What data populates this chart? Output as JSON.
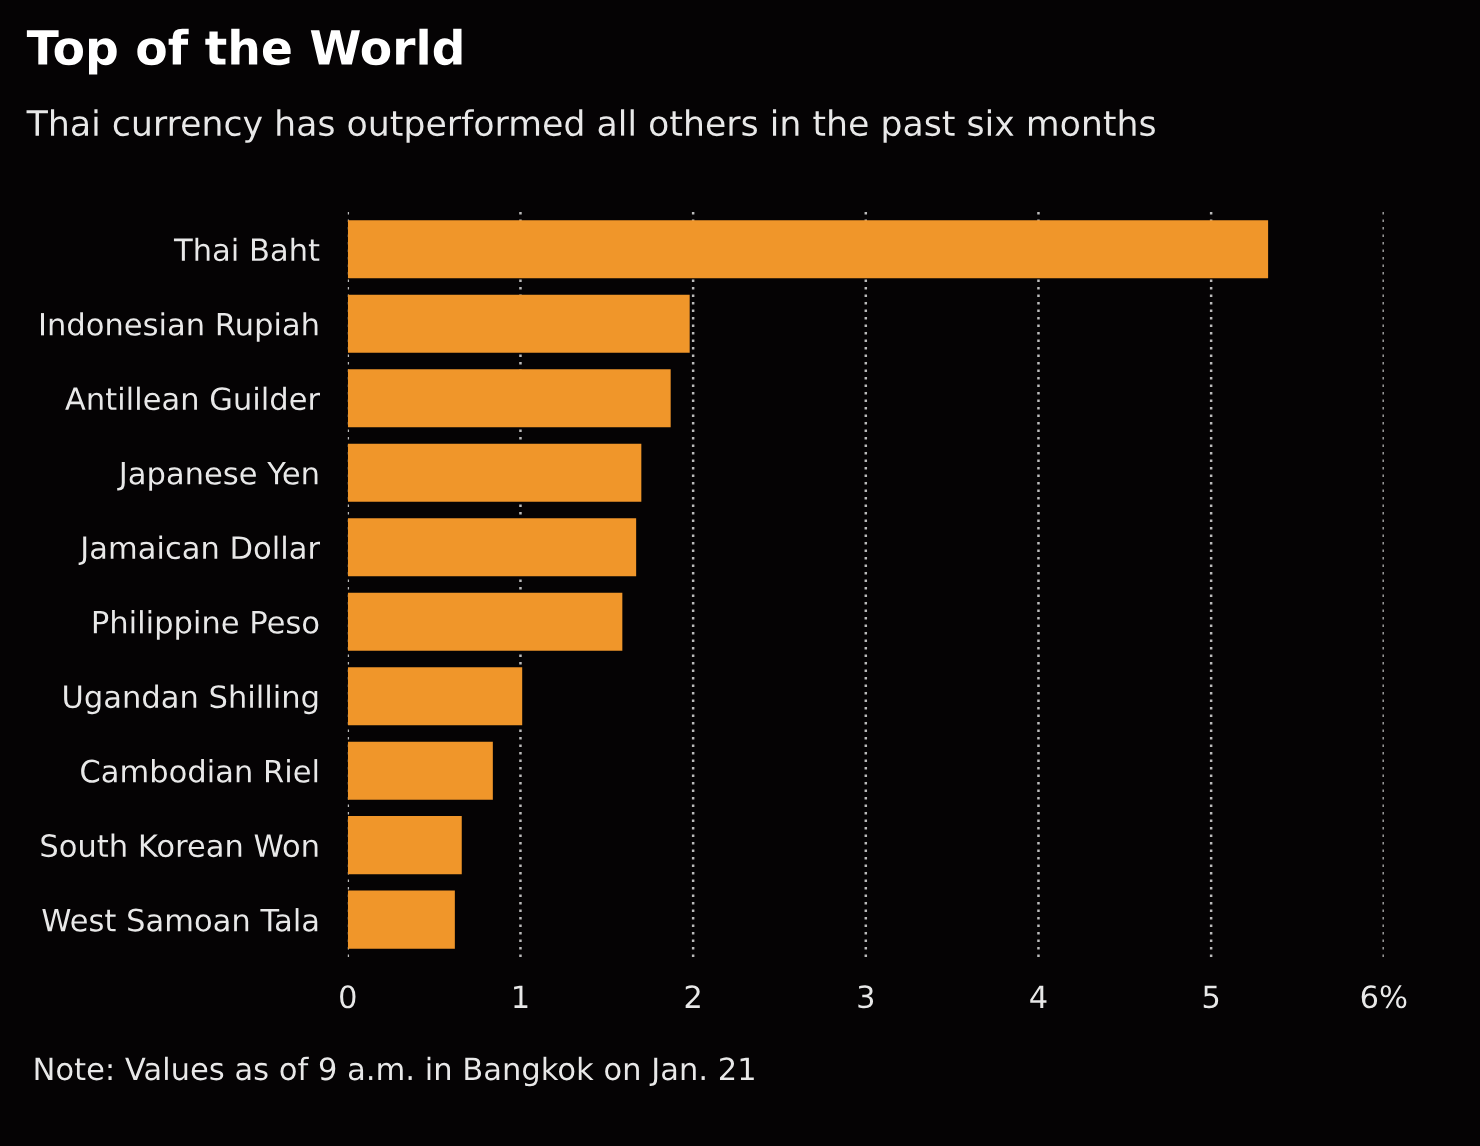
{
  "chart_data": {
    "type": "bar",
    "orientation": "horizontal",
    "title": "Top of the World",
    "subtitle": "Thai currency has outperformed all others in the past six months",
    "categories": [
      "Thai Baht",
      "Indonesian Rupiah",
      "Antillean Guilder",
      "Japanese Yen",
      "Jamaican Dollar",
      "Philippine Peso",
      "Ugandan Shilling",
      "Cambodian Riel",
      "South Korean Won",
      "West Samoan Tala"
    ],
    "values": [
      5.33,
      1.98,
      1.87,
      1.7,
      1.67,
      1.59,
      1.01,
      0.84,
      0.66,
      0.62
    ],
    "color": "#f0962a",
    "xlim": [
      0,
      6
    ],
    "xticks": [
      0,
      1,
      2,
      3,
      4,
      5,
      {
        "value": 6,
        "label": "6%"
      }
    ],
    "grid": "x",
    "annotations": [
      "Note: Values as of 9 a.m. in Bangkok on Jan. 21"
    ]
  }
}
